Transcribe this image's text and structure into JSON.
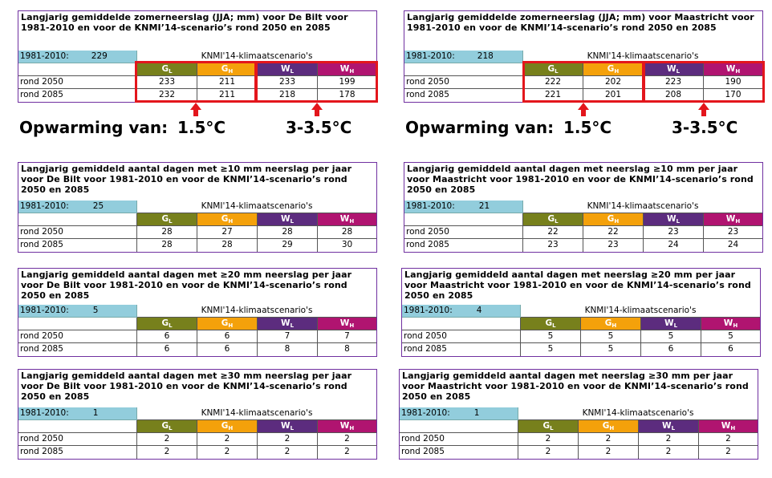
{
  "header_labels": {
    "baseline": "1981-2010:",
    "scenario_heading": "KNMI'14-klimaatscenario's",
    "G": "G",
    "W": "W",
    "L": "L",
    "H": "H",
    "row_2050": "rond 2050",
    "row_2085": "rond 2085"
  },
  "tables": [
    {
      "title": "Langjarig gemiddelde zomerneerslag (JJA; mm) voor De Bilt voor 1981-2010 en voor de KNMI’14-scenario’s rond 2050 en 2085",
      "baseline_value": "229",
      "rows": [
        [
          "233",
          "211",
          "233",
          "199"
        ],
        [
          "232",
          "211",
          "218",
          "178"
        ]
      ]
    },
    {
      "title": "Langjarig gemiddelde zomerneerslag (JJA; mm) voor Maastricht voor 1981-2010 en voor de KNMI’14-scenario’s rond 2050 en 2085",
      "baseline_value": "218",
      "rows": [
        [
          "222",
          "202",
          "223",
          "190"
        ],
        [
          "221",
          "201",
          "208",
          "170"
        ]
      ]
    },
    {
      "title": "Langjarig gemiddeld aantal dagen met ≥10 mm neerslag per jaar voor De Bilt voor 1981-2010 en voor de KNMI’14-scenario’s rond 2050 en 2085",
      "baseline_value": "25",
      "rows": [
        [
          "28",
          "27",
          "28",
          "28"
        ],
        [
          "28",
          "28",
          "29",
          "30"
        ]
      ]
    },
    {
      "title": "Langjarig gemiddeld aantal dagen met neerslag ≥10 mm per jaar voor Maastricht voor 1981-2010 en voor de KNMI’14-scenario’s rond 2050 en 2085",
      "baseline_value": "21",
      "rows": [
        [
          "22",
          "22",
          "23",
          "23"
        ],
        [
          "23",
          "23",
          "24",
          "24"
        ]
      ]
    },
    {
      "title": "Langjarig gemiddeld aantal dagen met ≥20 mm neerslag per jaar voor De Bilt voor 1981-2010 en voor de KNMI’14-scenario’s rond 2050 en 2085",
      "baseline_value": "5",
      "rows": [
        [
          "6",
          "6",
          "7",
          "7"
        ],
        [
          "6",
          "6",
          "8",
          "8"
        ]
      ]
    },
    {
      "title": "Langjarig gemiddeld aantal dagen met neerslag ≥20 mm per jaar voor Maastricht voor 1981-2010 en voor de KNMI’14-scenario’s rond 2050 en 2085",
      "baseline_value": "4",
      "rows": [
        [
          "5",
          "5",
          "5",
          "5"
        ],
        [
          "5",
          "5",
          "6",
          "6"
        ]
      ]
    },
    {
      "title": "Langjarig gemiddeld aantal dagen met ≥30 mm neerslag per jaar voor De Bilt voor 1981-2010 en voor de KNMI’14-scenario’s rond 2050 en 2085",
      "baseline_value": "1",
      "rows": [
        [
          "2",
          "2",
          "2",
          "2"
        ],
        [
          "2",
          "2",
          "2",
          "2"
        ]
      ]
    },
    {
      "title": "Langjarig gemiddeld aantal dagen met neerslag ≥30 mm per jaar voor Maastricht voor 1981-2010 en voor de KNMI’14-scenario’s rond 2050 en 2085",
      "baseline_value": "1",
      "rows": [
        [
          "2",
          "2",
          "2",
          "2"
        ],
        [
          "2",
          "2",
          "2",
          "2"
        ]
      ]
    }
  ],
  "annotations": {
    "warming_label": "Opwarming van:",
    "warming_g": "1.5°C",
    "warming_w": "3-3.5°C"
  },
  "colors": {
    "GL": "#77801c",
    "GH": "#f4a10b",
    "WL": "#5c2c7e",
    "WH": "#b01470",
    "baseline_cell": "#92cddc",
    "border": "#7030a0",
    "highlight": "#e3161c"
  }
}
